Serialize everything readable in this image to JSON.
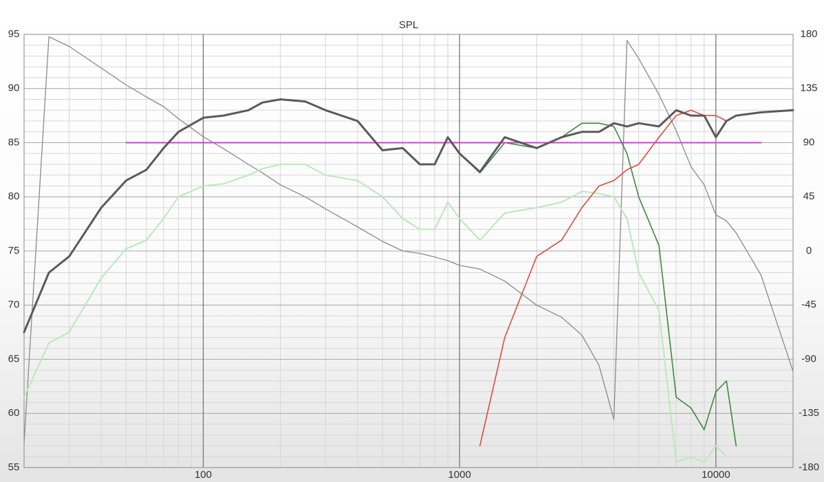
{
  "chart_data": {
    "type": "line",
    "title": "SPL",
    "x_scale": "log",
    "xlim": [
      20,
      20000
    ],
    "xticks": [
      100,
      1000,
      10000
    ],
    "ylim": [
      55,
      95
    ],
    "yticks": [
      55,
      60,
      65,
      70,
      75,
      80,
      85,
      90,
      95
    ],
    "y2lim": [
      -180,
      180
    ],
    "y2ticks": [
      -180,
      -135,
      -90,
      -45,
      0,
      45,
      90,
      135,
      180
    ],
    "grid": true,
    "minor_grid": true,
    "x": [
      20,
      25,
      30,
      40,
      50,
      60,
      70,
      80,
      100,
      120,
      150,
      170,
      200,
      250,
      300,
      400,
      500,
      600,
      700,
      800,
      900,
      1000,
      1200,
      1500,
      2000,
      2500,
      3000,
      3500,
      4000,
      4500,
      5000,
      6000,
      7000,
      8000,
      9000,
      10000,
      11000,
      12000,
      15000,
      20000
    ],
    "series": [
      {
        "color": "#8a8a8a",
        "line_width": 1.3,
        "axis": "y2",
        "values": [
          -160,
          178,
          170,
          152,
          138,
          128,
          120,
          110,
          95,
          85,
          72,
          65,
          55,
          45,
          35,
          20,
          8,
          0,
          -2,
          -5,
          -8,
          -12,
          -15,
          -25,
          -45,
          -55,
          -70,
          -95,
          -140,
          175,
          160,
          130,
          100,
          70,
          55,
          30,
          25,
          15,
          -20,
          -100
        ]
      },
      {
        "color": "#b8eab8",
        "line_width": 2,
        "values": [
          61.5,
          66.5,
          67.5,
          72.5,
          75.2,
          76,
          78,
          80,
          81,
          81.2,
          82,
          82.6,
          83,
          83,
          82,
          81.5,
          80,
          78,
          77,
          77,
          79.5,
          78,
          76,
          78.5,
          79,
          79.5,
          80.5,
          80.3,
          80,
          78,
          73,
          69.5,
          55.5,
          56,
          55.5,
          57,
          56,
          null,
          null,
          null
        ]
      },
      {
        "color": "#3a8a3a",
        "line_width": 1.6,
        "values": [
          null,
          null,
          null,
          null,
          null,
          null,
          null,
          null,
          null,
          null,
          null,
          null,
          null,
          null,
          null,
          null,
          null,
          null,
          null,
          null,
          null,
          84,
          82.2,
          85,
          84.5,
          85.5,
          86.8,
          86.8,
          86.5,
          84,
          80,
          75.5,
          61.5,
          60.5,
          58.5,
          62,
          63,
          57,
          null,
          null
        ]
      },
      {
        "color": "#e04a3a",
        "line_width": 1.6,
        "values": [
          null,
          null,
          null,
          null,
          null,
          null,
          null,
          null,
          null,
          null,
          null,
          null,
          null,
          null,
          null,
          null,
          null,
          null,
          null,
          null,
          null,
          null,
          57,
          67,
          74.5,
          76,
          79,
          81,
          81.5,
          82.5,
          83,
          85.5,
          87.5,
          88,
          87.5,
          87.5,
          87,
          null,
          null,
          null
        ]
      },
      {
        "color": "#d040d0",
        "line_width": 2,
        "values": [
          null,
          null,
          null,
          null,
          85,
          85,
          85,
          85,
          85,
          85,
          85,
          85,
          85,
          85,
          85,
          85,
          85,
          85,
          85,
          85,
          85,
          85,
          85,
          85,
          85,
          85,
          85,
          85,
          85,
          85,
          85,
          85,
          85,
          85,
          85,
          85,
          85,
          85,
          85,
          null
        ]
      },
      {
        "color": "#5a5a5a",
        "line_width": 3,
        "values": [
          67.5,
          73,
          74.5,
          79,
          81.5,
          82.5,
          84.5,
          86,
          87.3,
          87.5,
          88,
          88.7,
          89,
          88.8,
          88,
          87,
          84.3,
          84.5,
          83,
          83,
          85.5,
          84,
          82.3,
          85.5,
          84.5,
          85.5,
          86,
          86,
          86.8,
          86.5,
          86.8,
          86.5,
          88,
          87.5,
          87.5,
          85.5,
          87,
          87.5,
          87.8,
          88
        ]
      }
    ]
  }
}
